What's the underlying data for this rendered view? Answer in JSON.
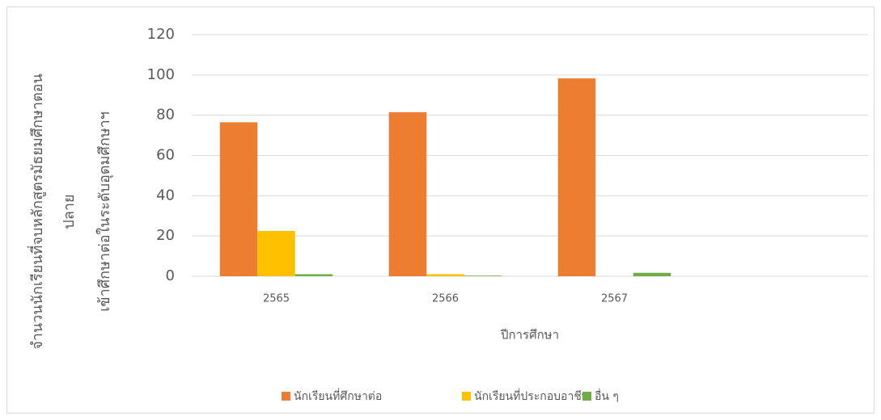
{
  "chart_data": {
    "type": "bar",
    "ylabel": [
      "จำนวนนักเรียนที่จบหลักสูตรมัธยมศึกษาตอน",
      "ปลาย",
      "เข้าศึกษาต่อในระดับอุดมศึกษาฯ"
    ],
    "xlabel": "ปีการศึกษา",
    "categories": [
      "2565",
      "2566",
      "2567",
      null
    ],
    "series": [
      {
        "name": "นักเรียนที่ศึกษาต่อ",
        "color": "#ed7d31",
        "values": [
          76.5,
          81.5,
          98.3,
          null
        ]
      },
      {
        "name": "นักเรียนที่ประกอบอาชีพ",
        "color": "#ffc000",
        "values": [
          22.5,
          1,
          0,
          null
        ]
      },
      {
        "name": "อื่น ๆ",
        "color": "#70ad47",
        "values": [
          1,
          0.3,
          1.7,
          null
        ]
      }
    ],
    "ylim": [
      0,
      120
    ],
    "yticks": [
      0,
      20,
      40,
      60,
      80,
      100,
      120
    ],
    "grid": true,
    "legend": "bottom"
  }
}
